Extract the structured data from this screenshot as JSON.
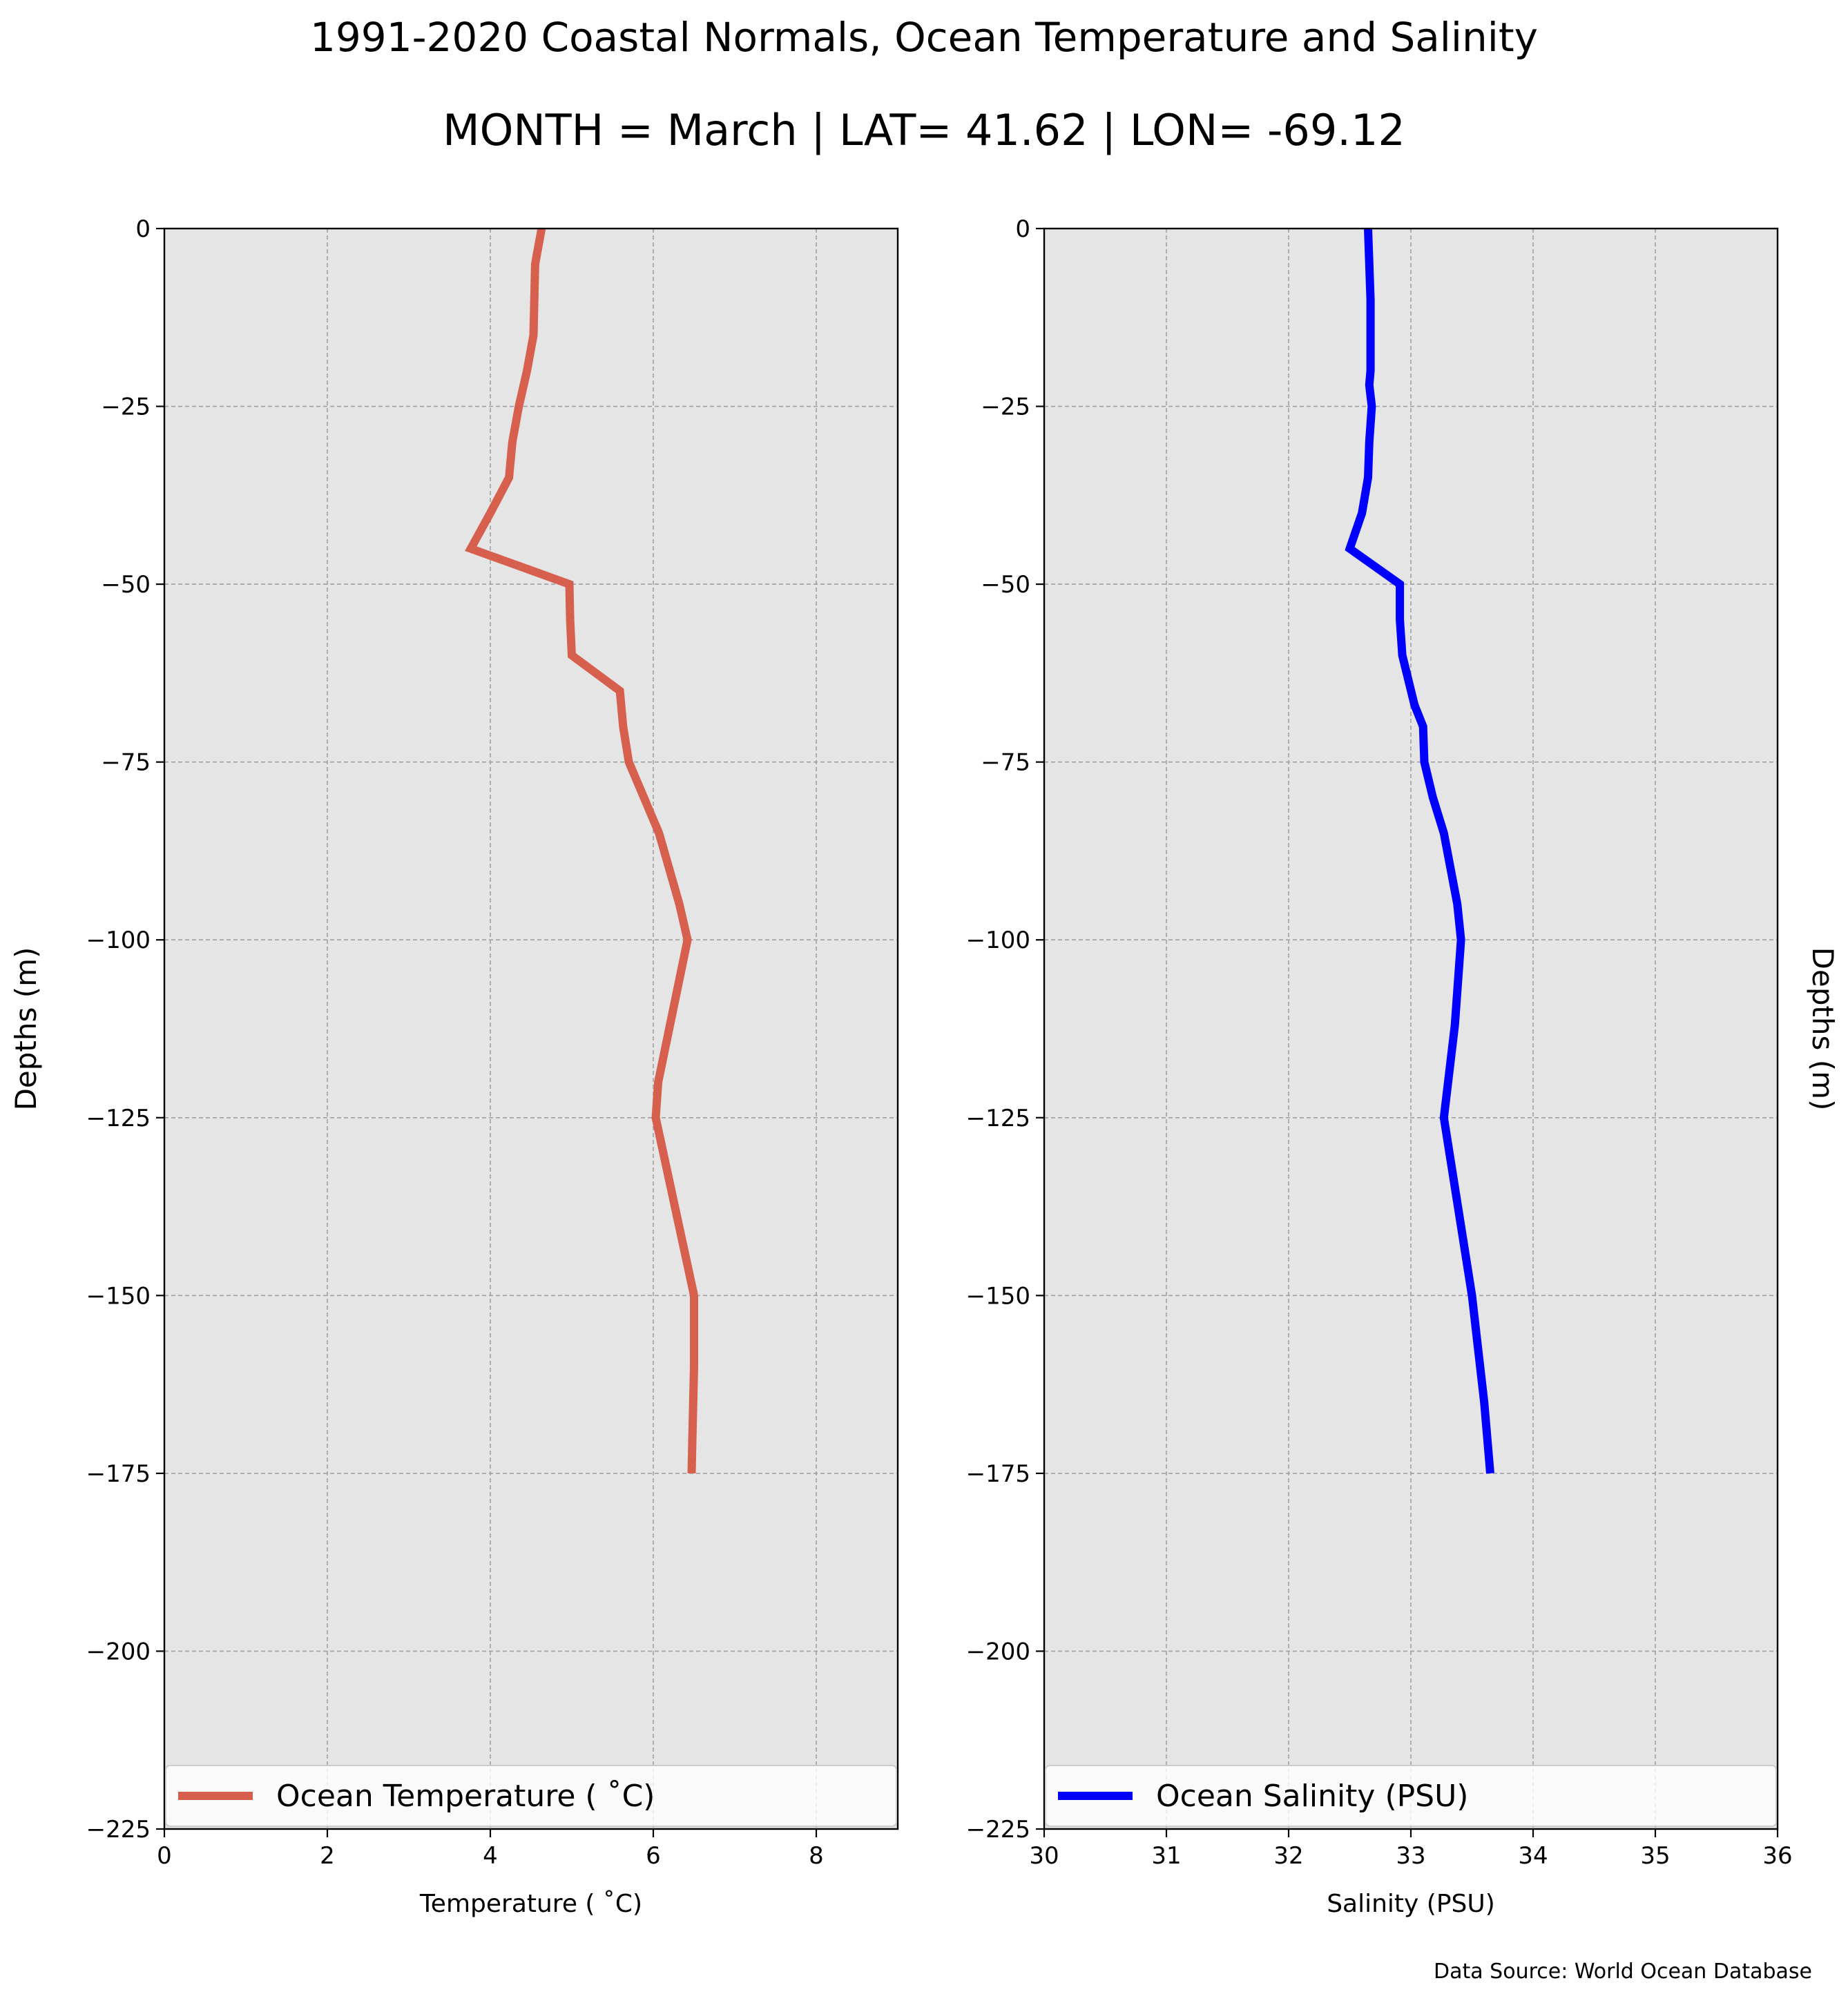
{
  "title": "1991-2020 Coastal Normals, Ocean Temperature and Salinity",
  "subtitle": "MONTH = March | LAT= 41.62 | LON= -69.12",
  "source_note": "Data Source: World Ocean Database",
  "colors": {
    "plot_background": "#e5e5e5",
    "grid": "#a0a0a0",
    "temperature_line": "#d6604d",
    "salinity_line": "#0000ff"
  },
  "chart_data": [
    {
      "type": "line",
      "orientation": "profile",
      "xlabel": "Temperature ($^\\circ$C)",
      "xlabel_display": "Temperature ( ˚C)",
      "ylabel": "Depths (m)",
      "xlim": [
        0,
        9
      ],
      "ylim": [
        -225,
        0
      ],
      "xticks": [
        0,
        2,
        4,
        6,
        8
      ],
      "yticks": [
        0,
        -25,
        -50,
        -75,
        -100,
        -125,
        -150,
        -175,
        -200,
        -225
      ],
      "tick_labels_x": [
        "0",
        "2",
        "4",
        "6",
        "8"
      ],
      "tick_labels_y": [
        "0",
        "−25",
        "−50",
        "−75",
        "−100",
        "−125",
        "−150",
        "−175",
        "−200",
        "−225"
      ],
      "grid": true,
      "legend_position": "lower",
      "series": [
        {
          "name": "Ocean Temperature ( ˚C)",
          "color": "#d6604d",
          "x": [
            4.63,
            4.55,
            4.54,
            4.53,
            4.45,
            4.35,
            4.27,
            4.23,
            4.0,
            3.76,
            4.97,
            4.98,
            5.0,
            5.59,
            5.63,
            5.7,
            6.07,
            6.32,
            6.42,
            6.06,
            6.03,
            6.5,
            6.5,
            6.48,
            6.47
          ],
          "y": [
            0,
            -5,
            -10,
            -15,
            -20,
            -25,
            -30,
            -35,
            -40,
            -45,
            -50,
            -55,
            -60,
            -65,
            -70,
            -75,
            -85,
            -95,
            -100,
            -120,
            -125,
            -150,
            -160,
            -170,
            -175
          ]
        }
      ]
    },
    {
      "type": "line",
      "orientation": "profile",
      "xlabel": "Salinity (PSU)",
      "ylabel": "Depths (m)",
      "xlim": [
        30,
        36
      ],
      "ylim": [
        -225,
        0
      ],
      "xticks": [
        30,
        31,
        32,
        33,
        34,
        35,
        36
      ],
      "yticks": [
        0,
        -25,
        -50,
        -75,
        -100,
        -125,
        -150,
        -175,
        -200,
        -225
      ],
      "tick_labels_x": [
        "30",
        "31",
        "32",
        "33",
        "34",
        "35",
        "36"
      ],
      "tick_labels_y": [
        "0",
        "−25",
        "−50",
        "−75",
        "−100",
        "−125",
        "−150",
        "−175",
        "−200",
        "−225"
      ],
      "grid": true,
      "legend_position": "lower",
      "series": [
        {
          "name": "Ocean Salinity (PSU)",
          "color": "#0000ff",
          "x": [
            32.65,
            32.66,
            32.67,
            32.67,
            32.66,
            32.68,
            32.66,
            32.65,
            32.6,
            32.5,
            32.91,
            32.91,
            32.93,
            33.03,
            33.1,
            33.11,
            33.18,
            33.27,
            33.38,
            33.41,
            33.36,
            33.27,
            33.5,
            33.6,
            33.65
          ],
          "y": [
            0,
            -5,
            -10,
            -20,
            -22,
            -25,
            -30,
            -35,
            -40,
            -45,
            -50,
            -55,
            -60,
            -67,
            -70,
            -75,
            -80,
            -85,
            -95,
            -100,
            -112,
            -125,
            -150,
            -165,
            -175
          ]
        }
      ]
    }
  ]
}
